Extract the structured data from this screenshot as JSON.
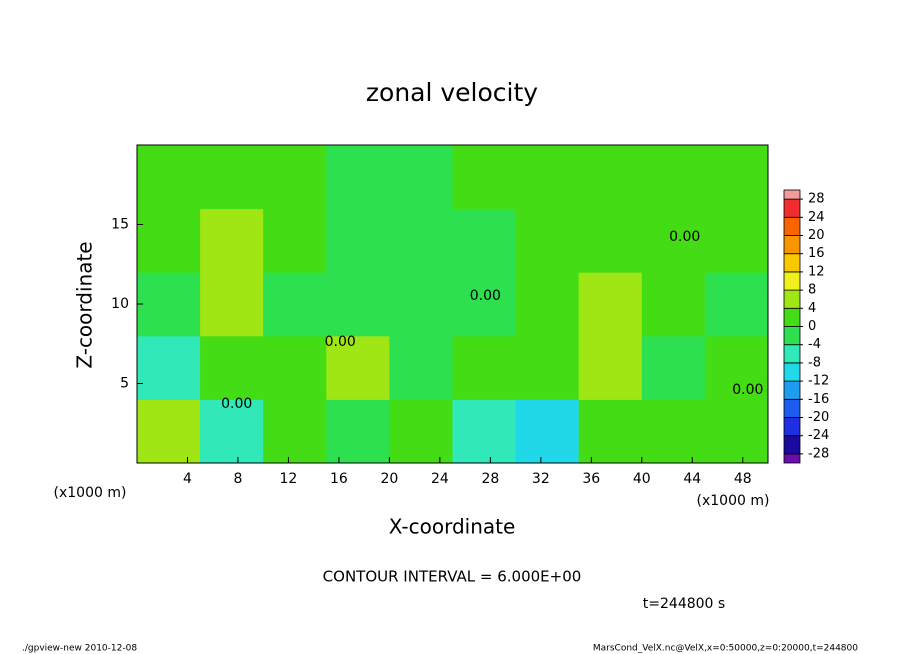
{
  "chart_data": {
    "type": "contour",
    "title": "zonal velocity",
    "x_label": "X-coordinate",
    "y_label": "Z-coordinate",
    "x_unit_label": "(x1000 m)",
    "y_unit_label": "(x1000 m)",
    "contour_interval": "CONTOUR INTERVAL = 6.000E+00",
    "time_label": "t=244800 s",
    "footer_left": "./gpview-new  2010-12-08",
    "footer_right": "MarsCond_VelX.nc@VelX,x=0:50000,z=0:20000,t=244800",
    "xlim": [
      0,
      50
    ],
    "ylim": [
      0,
      20
    ],
    "xticks": [
      4,
      8,
      12,
      16,
      20,
      24,
      28,
      32,
      36,
      40,
      44,
      48
    ],
    "yticks": [
      5,
      10,
      15
    ],
    "grid_x": [
      0,
      5,
      10,
      15,
      20,
      25,
      30,
      35,
      40,
      45,
      50
    ],
    "grid_z": [
      0,
      4,
      8,
      12,
      16,
      20
    ],
    "z": [
      [
        5,
        -6,
        1,
        -1,
        3,
        -5,
        -9,
        1,
        3,
        2
      ],
      [
        -5,
        3,
        0,
        4,
        -2,
        0,
        3,
        5,
        -3,
        2
      ],
      [
        -4,
        4,
        -1,
        -2,
        -3,
        -3,
        1,
        5,
        1,
        -2
      ],
      [
        2,
        4,
        0,
        -3,
        -3,
        -1,
        3,
        3,
        1,
        0
      ],
      [
        1,
        2,
        1,
        -2,
        -2,
        1,
        2,
        2,
        1,
        1
      ]
    ],
    "levels": [
      -28,
      -24,
      -20,
      -16,
      -12,
      -8,
      -4,
      0,
      4,
      8,
      12,
      16,
      20,
      24,
      28
    ],
    "colors": [
      "#6a0dad",
      "#1a0aa0",
      "#1e2ee0",
      "#1e5cf0",
      "#1e9cf0",
      "#20d8e8",
      "#30e8b8",
      "#2ce050",
      "#44dc14",
      "#a0e614",
      "#f0f01c",
      "#f8c800",
      "#f89600",
      "#f86400",
      "#f02c2c",
      "#f49a9a"
    ],
    "annotations": [
      {
        "text": "0.00",
        "x": 7.9,
        "y": 3.7
      },
      {
        "text": "0.00",
        "x": 16.1,
        "y": 7.6
      },
      {
        "text": "0.00",
        "x": 27.6,
        "y": 10.5
      },
      {
        "text": "0.00",
        "x": 43.4,
        "y": 14.2
      },
      {
        "text": "0.00",
        "x": 48.4,
        "y": 4.6
      }
    ]
  }
}
